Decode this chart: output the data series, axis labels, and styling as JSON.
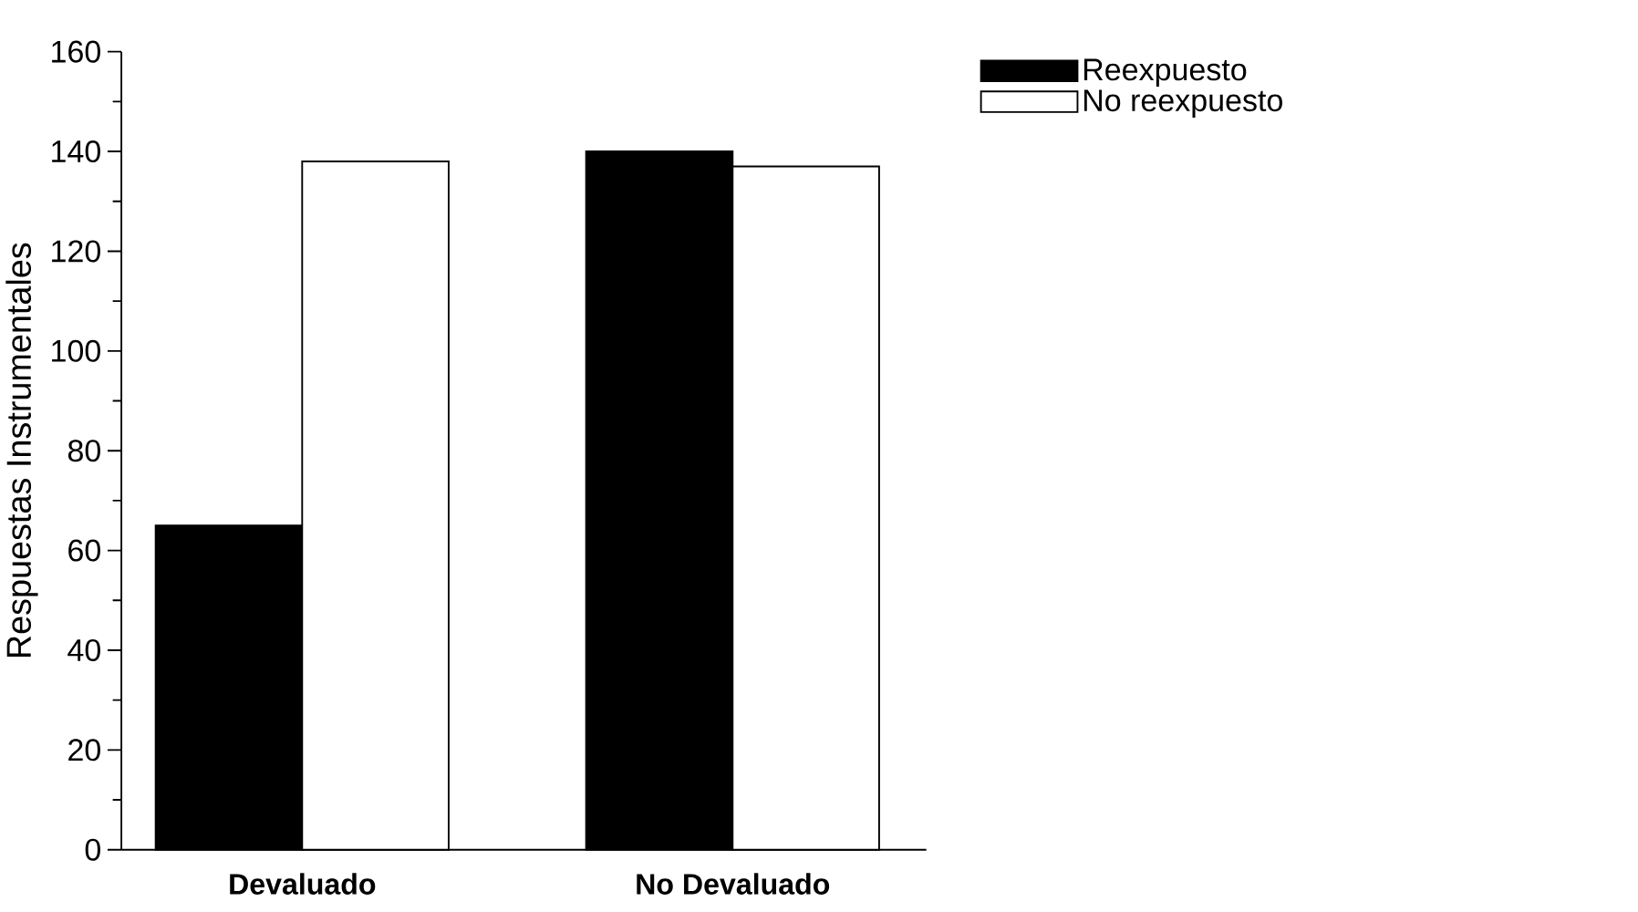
{
  "chart_data": {
    "type": "bar",
    "ylabel": "Respuestas Instrumentales",
    "categories": [
      "Devaluado",
      "No Devaluado"
    ],
    "series": [
      {
        "name": "Reexpuesto",
        "color": "#000000",
        "values": [
          65,
          140
        ]
      },
      {
        "name": "No reexpuesto",
        "color": "#ffffff",
        "values": [
          138,
          137
        ]
      }
    ],
    "ylim": [
      0,
      160
    ],
    "yticks": [
      0,
      20,
      40,
      60,
      80,
      100,
      120,
      140,
      160
    ],
    "legend": "top right"
  }
}
